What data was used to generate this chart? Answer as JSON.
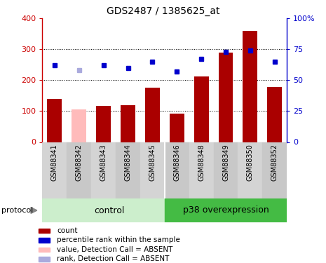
{
  "title": "GDS2487 / 1385625_at",
  "samples": [
    "GSM88341",
    "GSM88342",
    "GSM88343",
    "GSM88344",
    "GSM88345",
    "GSM88346",
    "GSM88348",
    "GSM88349",
    "GSM88350",
    "GSM88352"
  ],
  "bar_values": [
    140,
    105,
    117,
    120,
    175,
    93,
    212,
    290,
    360,
    178
  ],
  "bar_absent": [
    false,
    true,
    false,
    false,
    false,
    false,
    false,
    false,
    false,
    false
  ],
  "rank_values": [
    62,
    58,
    62,
    60,
    65,
    57,
    67,
    73,
    74,
    65
  ],
  "rank_absent": [
    false,
    true,
    false,
    false,
    false,
    false,
    false,
    false,
    false,
    false
  ],
  "bar_color_present": "#aa0000",
  "bar_color_absent": "#ffbbbb",
  "rank_color_present": "#0000cc",
  "rank_color_absent": "#aaaadd",
  "ylim_left": [
    0,
    400
  ],
  "ylim_right": [
    0,
    100
  ],
  "yticks_left": [
    0,
    100,
    200,
    300,
    400
  ],
  "yticks_right": [
    0,
    25,
    50,
    75,
    100
  ],
  "ytick_labels_right": [
    "0",
    "25",
    "50",
    "75",
    "100%"
  ],
  "grid_values": [
    100,
    200,
    300
  ],
  "n_control": 5,
  "n_p38": 5,
  "control_label": "control",
  "p38_label": "p38 overexpression",
  "protocol_label": "protocol",
  "control_bg": "#cceecc",
  "p38_bg": "#44bb44",
  "xlabels_bg": "#cccccc",
  "legend_items": [
    {
      "label": "count",
      "color": "#aa0000"
    },
    {
      "label": "percentile rank within the sample",
      "color": "#0000cc"
    },
    {
      "label": "value, Detection Call = ABSENT",
      "color": "#ffbbbb"
    },
    {
      "label": "rank, Detection Call = ABSENT",
      "color": "#aaaadd"
    }
  ]
}
